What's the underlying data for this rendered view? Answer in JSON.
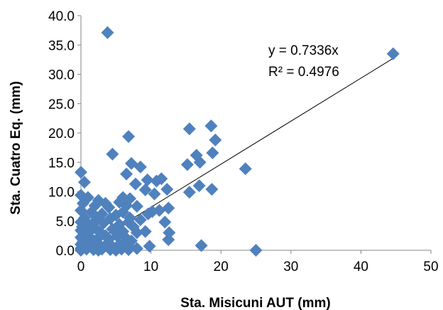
{
  "chart_data": {
    "type": "scatter",
    "xlabel": "Sta. Misicuni AUT (mm)",
    "ylabel": "Sta. Cuatro Eq. (mm)",
    "xlim": [
      0,
      50
    ],
    "ylim": [
      0,
      40
    ],
    "x_ticks": [
      "0",
      "10",
      "20",
      "30",
      "40",
      "50"
    ],
    "y_ticks": [
      "0.0",
      "5.0",
      "10.0",
      "15.0",
      "20.0",
      "25.0",
      "30.0",
      "35.0",
      "40.0"
    ],
    "grid": false,
    "marker": "diamond",
    "marker_color": "#4F81BD",
    "trendline": {
      "slope": 0.7336,
      "intercept": 0,
      "x_range": [
        0,
        44.6
      ],
      "color": "#000000"
    },
    "annotations": [
      "y = 0.7336x",
      "R² = 0.4976"
    ],
    "points": [
      [
        3.8,
        37.1
      ],
      [
        44.6,
        33.5
      ],
      [
        15.5,
        20.7
      ],
      [
        18.6,
        21.2
      ],
      [
        6.8,
        19.4
      ],
      [
        19.2,
        18.8
      ],
      [
        4.5,
        16.4
      ],
      [
        16.5,
        16.2
      ],
      [
        18.8,
        16.6
      ],
      [
        7.2,
        14.8
      ],
      [
        8.5,
        14.2
      ],
      [
        15.2,
        14.6
      ],
      [
        17.0,
        15.0
      ],
      [
        23.5,
        13.9
      ],
      [
        0,
        13.3
      ],
      [
        6.5,
        13.0
      ],
      [
        9.5,
        12.0
      ],
      [
        10.8,
        11.8
      ],
      [
        11.5,
        12.2
      ],
      [
        0.5,
        11.6
      ],
      [
        7.8,
        11.3
      ],
      [
        16.9,
        11.0
      ],
      [
        12.3,
        10.4
      ],
      [
        18.7,
        10.4
      ],
      [
        9.2,
        10.3
      ],
      [
        15.5,
        9.9
      ],
      [
        10.5,
        9.6
      ],
      [
        6.0,
        9.0
      ],
      [
        7.0,
        8.8
      ],
      [
        0,
        9.4
      ],
      [
        1.0,
        9.0
      ],
      [
        2.5,
        8.5
      ],
      [
        3.5,
        8.0
      ],
      [
        5.5,
        8.2
      ],
      [
        0.3,
        8.0
      ],
      [
        2.0,
        7.6
      ],
      [
        4.0,
        7.3
      ],
      [
        6.5,
        7.6
      ],
      [
        8.0,
        7.5
      ],
      [
        12.5,
        7.2
      ],
      [
        11.2,
        6.8
      ],
      [
        10.2,
        6.6
      ],
      [
        9.6,
        6.2
      ],
      [
        0,
        6.8
      ],
      [
        1.5,
        6.5
      ],
      [
        3.0,
        6.2
      ],
      [
        5.0,
        6.0
      ],
      [
        6.0,
        6.5
      ],
      [
        0.5,
        5.5
      ],
      [
        2.2,
        5.2
      ],
      [
        4.2,
        5.4
      ],
      [
        7.0,
        5.5
      ],
      [
        8.5,
        5.2
      ],
      [
        0,
        4.8
      ],
      [
        1.0,
        4.5
      ],
      [
        3.2,
        4.6
      ],
      [
        5.5,
        4.4
      ],
      [
        6.8,
        4.8
      ],
      [
        12.0,
        4.8
      ],
      [
        7.5,
        4.0
      ],
      [
        0.2,
        4.0
      ],
      [
        2.0,
        3.8
      ],
      [
        4.5,
        3.6
      ],
      [
        0,
        3.4
      ],
      [
        1.2,
        3.2
      ],
      [
        2.8,
        3.0
      ],
      [
        6.0,
        3.2
      ],
      [
        8.0,
        3.0
      ],
      [
        9.2,
        3.2
      ],
      [
        12.6,
        3.0
      ],
      [
        0.5,
        2.6
      ],
      [
        3.5,
        2.5
      ],
      [
        5.2,
        2.4
      ],
      [
        0,
        2.2
      ],
      [
        1.5,
        2.0
      ],
      [
        2.5,
        2.1
      ],
      [
        4.0,
        1.9
      ],
      [
        6.5,
        2.0
      ],
      [
        7.2,
        1.6
      ],
      [
        12.5,
        1.8
      ],
      [
        0.3,
        1.5
      ],
      [
        2.0,
        1.3
      ],
      [
        3.8,
        1.2
      ],
      [
        5.5,
        1.0
      ],
      [
        0,
        1.0
      ],
      [
        1.0,
        0.8
      ],
      [
        2.8,
        0.7
      ],
      [
        4.5,
        0.6
      ],
      [
        6.0,
        0.8
      ],
      [
        7.0,
        0.5
      ],
      [
        9.8,
        0.7
      ],
      [
        17.2,
        0.8
      ],
      [
        0,
        0.3
      ],
      [
        0.8,
        0.2
      ],
      [
        1.8,
        0.1
      ],
      [
        3.0,
        0.2
      ],
      [
        4.2,
        0.1
      ],
      [
        5.8,
        0.2
      ],
      [
        6.8,
        0.1
      ],
      [
        8.0,
        0.3
      ],
      [
        25.0,
        0.0
      ],
      [
        0,
        0
      ],
      [
        2.5,
        0
      ],
      [
        5.0,
        0
      ]
    ]
  }
}
